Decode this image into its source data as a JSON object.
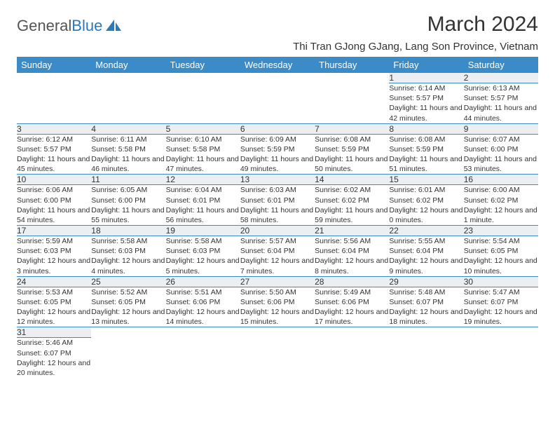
{
  "logo": {
    "text1": "General",
    "text2": "Blue"
  },
  "title": "March 2024",
  "location": "Thi Tran GJong GJang, Lang Son Province, Vietnam",
  "colors": {
    "header_bg": "#3b8bc8",
    "header_text": "#ffffff",
    "daynum_bg": "#eceff1",
    "border": "#3b8bc8"
  },
  "weekdays": [
    "Sunday",
    "Monday",
    "Tuesday",
    "Wednesday",
    "Thursday",
    "Friday",
    "Saturday"
  ],
  "weeks": [
    [
      null,
      null,
      null,
      null,
      null,
      {
        "n": "1",
        "sr": "Sunrise: 6:14 AM",
        "ss": "Sunset: 5:57 PM",
        "dl": "Daylight: 11 hours and 42 minutes."
      },
      {
        "n": "2",
        "sr": "Sunrise: 6:13 AM",
        "ss": "Sunset: 5:57 PM",
        "dl": "Daylight: 11 hours and 44 minutes."
      }
    ],
    [
      {
        "n": "3",
        "sr": "Sunrise: 6:12 AM",
        "ss": "Sunset: 5:57 PM",
        "dl": "Daylight: 11 hours and 45 minutes."
      },
      {
        "n": "4",
        "sr": "Sunrise: 6:11 AM",
        "ss": "Sunset: 5:58 PM",
        "dl": "Daylight: 11 hours and 46 minutes."
      },
      {
        "n": "5",
        "sr": "Sunrise: 6:10 AM",
        "ss": "Sunset: 5:58 PM",
        "dl": "Daylight: 11 hours and 47 minutes."
      },
      {
        "n": "6",
        "sr": "Sunrise: 6:09 AM",
        "ss": "Sunset: 5:59 PM",
        "dl": "Daylight: 11 hours and 49 minutes."
      },
      {
        "n": "7",
        "sr": "Sunrise: 6:08 AM",
        "ss": "Sunset: 5:59 PM",
        "dl": "Daylight: 11 hours and 50 minutes."
      },
      {
        "n": "8",
        "sr": "Sunrise: 6:08 AM",
        "ss": "Sunset: 5:59 PM",
        "dl": "Daylight: 11 hours and 51 minutes."
      },
      {
        "n": "9",
        "sr": "Sunrise: 6:07 AM",
        "ss": "Sunset: 6:00 PM",
        "dl": "Daylight: 11 hours and 53 minutes."
      }
    ],
    [
      {
        "n": "10",
        "sr": "Sunrise: 6:06 AM",
        "ss": "Sunset: 6:00 PM",
        "dl": "Daylight: 11 hours and 54 minutes."
      },
      {
        "n": "11",
        "sr": "Sunrise: 6:05 AM",
        "ss": "Sunset: 6:00 PM",
        "dl": "Daylight: 11 hours and 55 minutes."
      },
      {
        "n": "12",
        "sr": "Sunrise: 6:04 AM",
        "ss": "Sunset: 6:01 PM",
        "dl": "Daylight: 11 hours and 56 minutes."
      },
      {
        "n": "13",
        "sr": "Sunrise: 6:03 AM",
        "ss": "Sunset: 6:01 PM",
        "dl": "Daylight: 11 hours and 58 minutes."
      },
      {
        "n": "14",
        "sr": "Sunrise: 6:02 AM",
        "ss": "Sunset: 6:02 PM",
        "dl": "Daylight: 11 hours and 59 minutes."
      },
      {
        "n": "15",
        "sr": "Sunrise: 6:01 AM",
        "ss": "Sunset: 6:02 PM",
        "dl": "Daylight: 12 hours and 0 minutes."
      },
      {
        "n": "16",
        "sr": "Sunrise: 6:00 AM",
        "ss": "Sunset: 6:02 PM",
        "dl": "Daylight: 12 hours and 1 minute."
      }
    ],
    [
      {
        "n": "17",
        "sr": "Sunrise: 5:59 AM",
        "ss": "Sunset: 6:03 PM",
        "dl": "Daylight: 12 hours and 3 minutes."
      },
      {
        "n": "18",
        "sr": "Sunrise: 5:58 AM",
        "ss": "Sunset: 6:03 PM",
        "dl": "Daylight: 12 hours and 4 minutes."
      },
      {
        "n": "19",
        "sr": "Sunrise: 5:58 AM",
        "ss": "Sunset: 6:03 PM",
        "dl": "Daylight: 12 hours and 5 minutes."
      },
      {
        "n": "20",
        "sr": "Sunrise: 5:57 AM",
        "ss": "Sunset: 6:04 PM",
        "dl": "Daylight: 12 hours and 7 minutes."
      },
      {
        "n": "21",
        "sr": "Sunrise: 5:56 AM",
        "ss": "Sunset: 6:04 PM",
        "dl": "Daylight: 12 hours and 8 minutes."
      },
      {
        "n": "22",
        "sr": "Sunrise: 5:55 AM",
        "ss": "Sunset: 6:04 PM",
        "dl": "Daylight: 12 hours and 9 minutes."
      },
      {
        "n": "23",
        "sr": "Sunrise: 5:54 AM",
        "ss": "Sunset: 6:05 PM",
        "dl": "Daylight: 12 hours and 10 minutes."
      }
    ],
    [
      {
        "n": "24",
        "sr": "Sunrise: 5:53 AM",
        "ss": "Sunset: 6:05 PM",
        "dl": "Daylight: 12 hours and 12 minutes."
      },
      {
        "n": "25",
        "sr": "Sunrise: 5:52 AM",
        "ss": "Sunset: 6:05 PM",
        "dl": "Daylight: 12 hours and 13 minutes."
      },
      {
        "n": "26",
        "sr": "Sunrise: 5:51 AM",
        "ss": "Sunset: 6:06 PM",
        "dl": "Daylight: 12 hours and 14 minutes."
      },
      {
        "n": "27",
        "sr": "Sunrise: 5:50 AM",
        "ss": "Sunset: 6:06 PM",
        "dl": "Daylight: 12 hours and 15 minutes."
      },
      {
        "n": "28",
        "sr": "Sunrise: 5:49 AM",
        "ss": "Sunset: 6:06 PM",
        "dl": "Daylight: 12 hours and 17 minutes."
      },
      {
        "n": "29",
        "sr": "Sunrise: 5:48 AM",
        "ss": "Sunset: 6:07 PM",
        "dl": "Daylight: 12 hours and 18 minutes."
      },
      {
        "n": "30",
        "sr": "Sunrise: 5:47 AM",
        "ss": "Sunset: 6:07 PM",
        "dl": "Daylight: 12 hours and 19 minutes."
      }
    ],
    [
      {
        "n": "31",
        "sr": "Sunrise: 5:46 AM",
        "ss": "Sunset: 6:07 PM",
        "dl": "Daylight: 12 hours and 20 minutes."
      },
      null,
      null,
      null,
      null,
      null,
      null
    ]
  ]
}
